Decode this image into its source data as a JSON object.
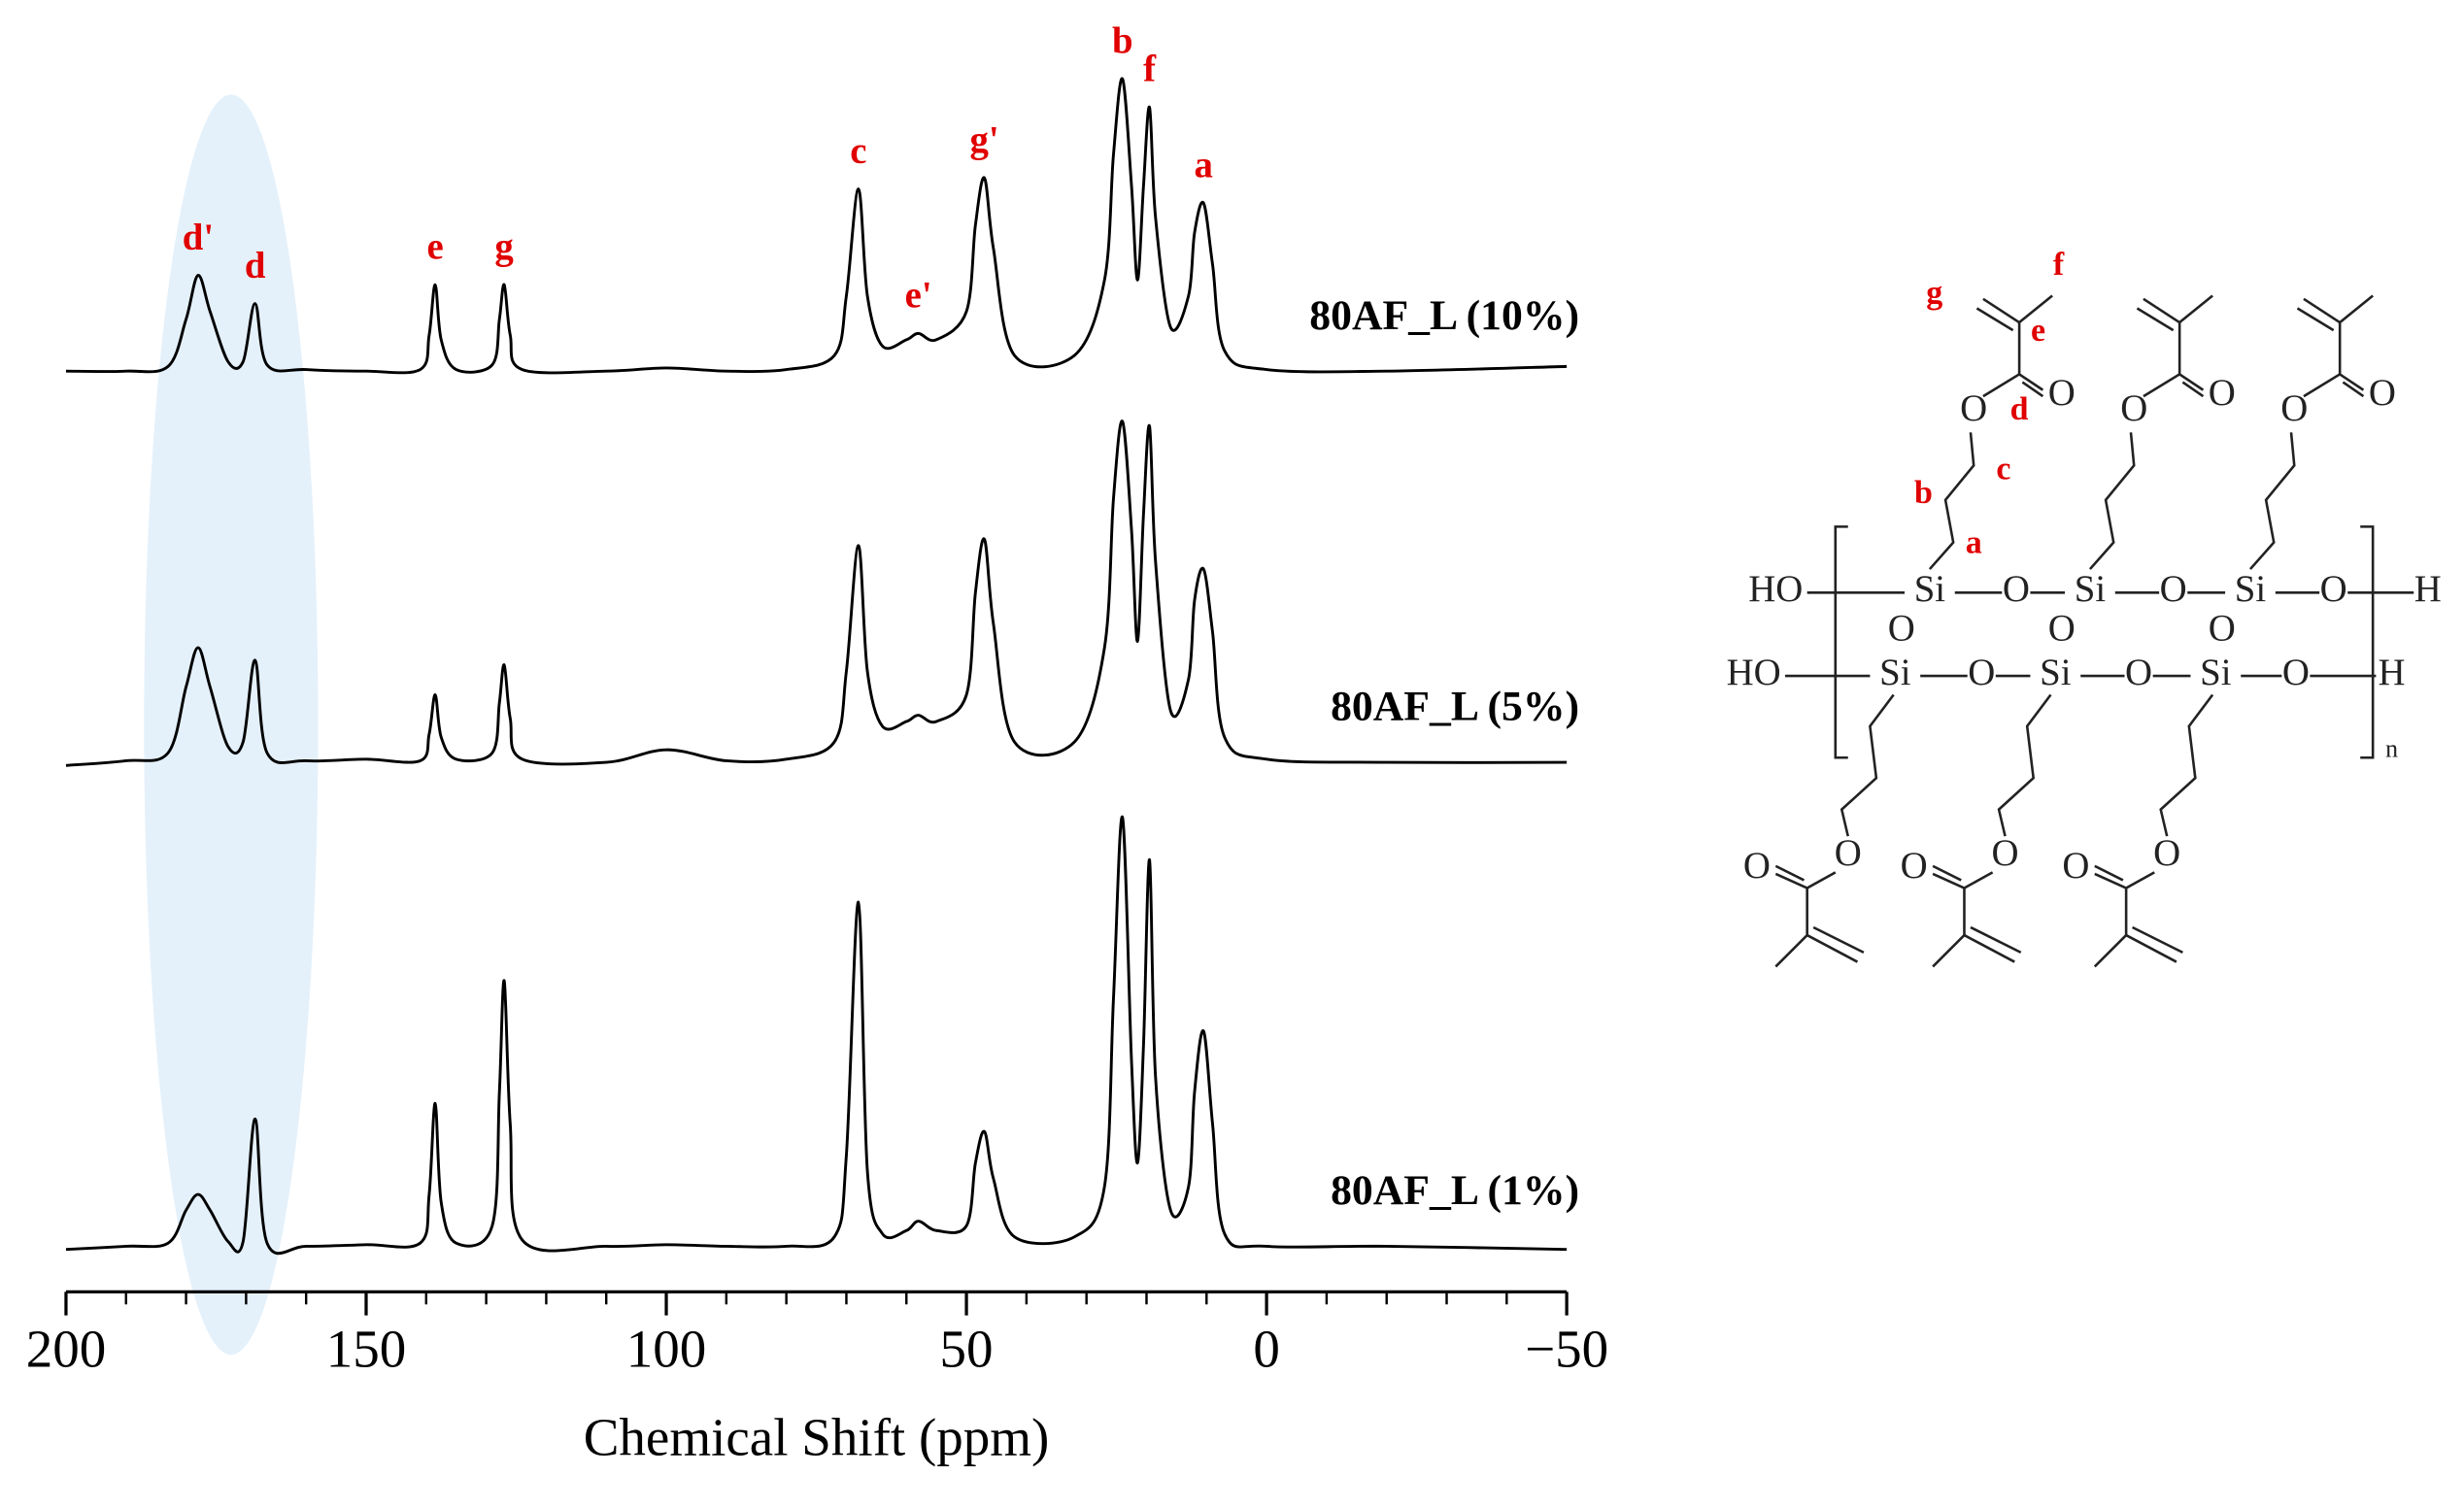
{
  "chart_data": {
    "type": "line",
    "x_label": "Chemical Shift (ppm)",
    "xlim": [
      200,
      -50
    ],
    "xticks": [
      200,
      150,
      100,
      50,
      0,
      {
        "value": -50,
        "label": "−50"
      }
    ],
    "xminorticks": [
      190,
      180,
      170,
      160,
      140,
      130,
      120,
      110,
      90,
      80,
      70,
      60,
      40,
      30,
      20,
      10,
      -10,
      -20,
      -30,
      -40
    ],
    "highlight": [
      187,
      158
    ],
    "highlight_color": "#e4f1fb",
    "x": [
      200,
      190,
      183,
      180,
      178,
      176,
      173,
      170.5,
      168.5,
      166.5,
      160,
      150,
      141,
      139.5,
      138.5,
      137.5,
      135,
      129,
      127.8,
      127,
      126,
      124,
      110,
      100,
      90,
      80,
      72,
      70,
      68,
      66.5,
      64,
      60,
      58,
      55,
      50,
      48.5,
      47,
      45.5,
      42,
      32,
      27,
      25.5,
      24,
      22.5,
      21.5,
      20.5,
      19.5,
      18.5,
      16,
      13,
      12,
      10.5,
      9,
      7,
      0,
      -20,
      -50
    ],
    "series": [
      {
        "name": "80AF_L (10%)",
        "color": "#000000",
        "values": [
          2,
          2,
          5,
          35,
          63,
          40,
          8,
          8,
          45,
          6,
          3,
          2,
          3,
          25,
          57,
          22,
          3,
          6,
          35,
          57,
          25,
          3,
          2,
          4,
          2,
          3,
          12,
          50,
          118,
          50,
          18,
          22,
          26,
          22,
          40,
          95,
          125,
          80,
          12,
          12,
          60,
          140,
          188,
          120,
          60,
          120,
          170,
          100,
          30,
          50,
          90,
          109,
          70,
          15,
          3,
          2,
          5
        ]
      },
      {
        "name": "80AF_L (5%)",
        "color": "#000000",
        "values": [
          0,
          3,
          8,
          50,
          75,
          50,
          12,
          15,
          67,
          8,
          3,
          4,
          3,
          20,
          45,
          18,
          4,
          8,
          40,
          64,
          30,
          4,
          2,
          10,
          3,
          4,
          15,
          60,
          140,
          60,
          25,
          28,
          32,
          28,
          45,
          110,
          144,
          90,
          15,
          15,
          75,
          170,
          219,
          150,
          79,
          160,
          216,
          130,
          35,
          55,
          105,
          125,
          85,
          18,
          4,
          2,
          2
        ]
      },
      {
        "name": "80AF_L (1%)",
        "color": "#000000",
        "values": [
          0,
          2,
          4,
          25,
          35,
          25,
          5,
          5,
          83,
          4,
          2,
          3,
          4,
          35,
          93,
          30,
          4,
          15,
          100,
          171,
          80,
          6,
          2,
          3,
          2,
          2,
          8,
          60,
          221,
          50,
          10,
          12,
          18,
          12,
          15,
          55,
          75,
          45,
          8,
          8,
          40,
          160,
          275,
          120,
          55,
          130,
          248,
          110,
          25,
          40,
          100,
          139,
          80,
          10,
          2,
          2,
          0
        ]
      }
    ],
    "annotation_color": "#e00000",
    "annotations": [
      {
        "text": "d'",
        "x": 178
      },
      {
        "text": "d",
        "x": 168.5
      },
      {
        "text": "e",
        "x": 138.5
      },
      {
        "text": "g",
        "x": 127
      },
      {
        "text": "c",
        "x": 68
      },
      {
        "text": "e'",
        "x": 58
      },
      {
        "text": "g'",
        "x": 47
      },
      {
        "text": "b",
        "x": 24
      },
      {
        "text": "f",
        "x": 19.5
      },
      {
        "text": "a",
        "x": 10.5
      }
    ]
  },
  "structure": {
    "hydroxyl": "HO",
    "silicon": "Si",
    "oxygen": "O",
    "hydrogen": "H",
    "repeat": "n",
    "site_labels": {
      "a": "a",
      "b": "b",
      "c": "c",
      "d": "d",
      "e": "e",
      "f": "f",
      "g": "g"
    }
  }
}
